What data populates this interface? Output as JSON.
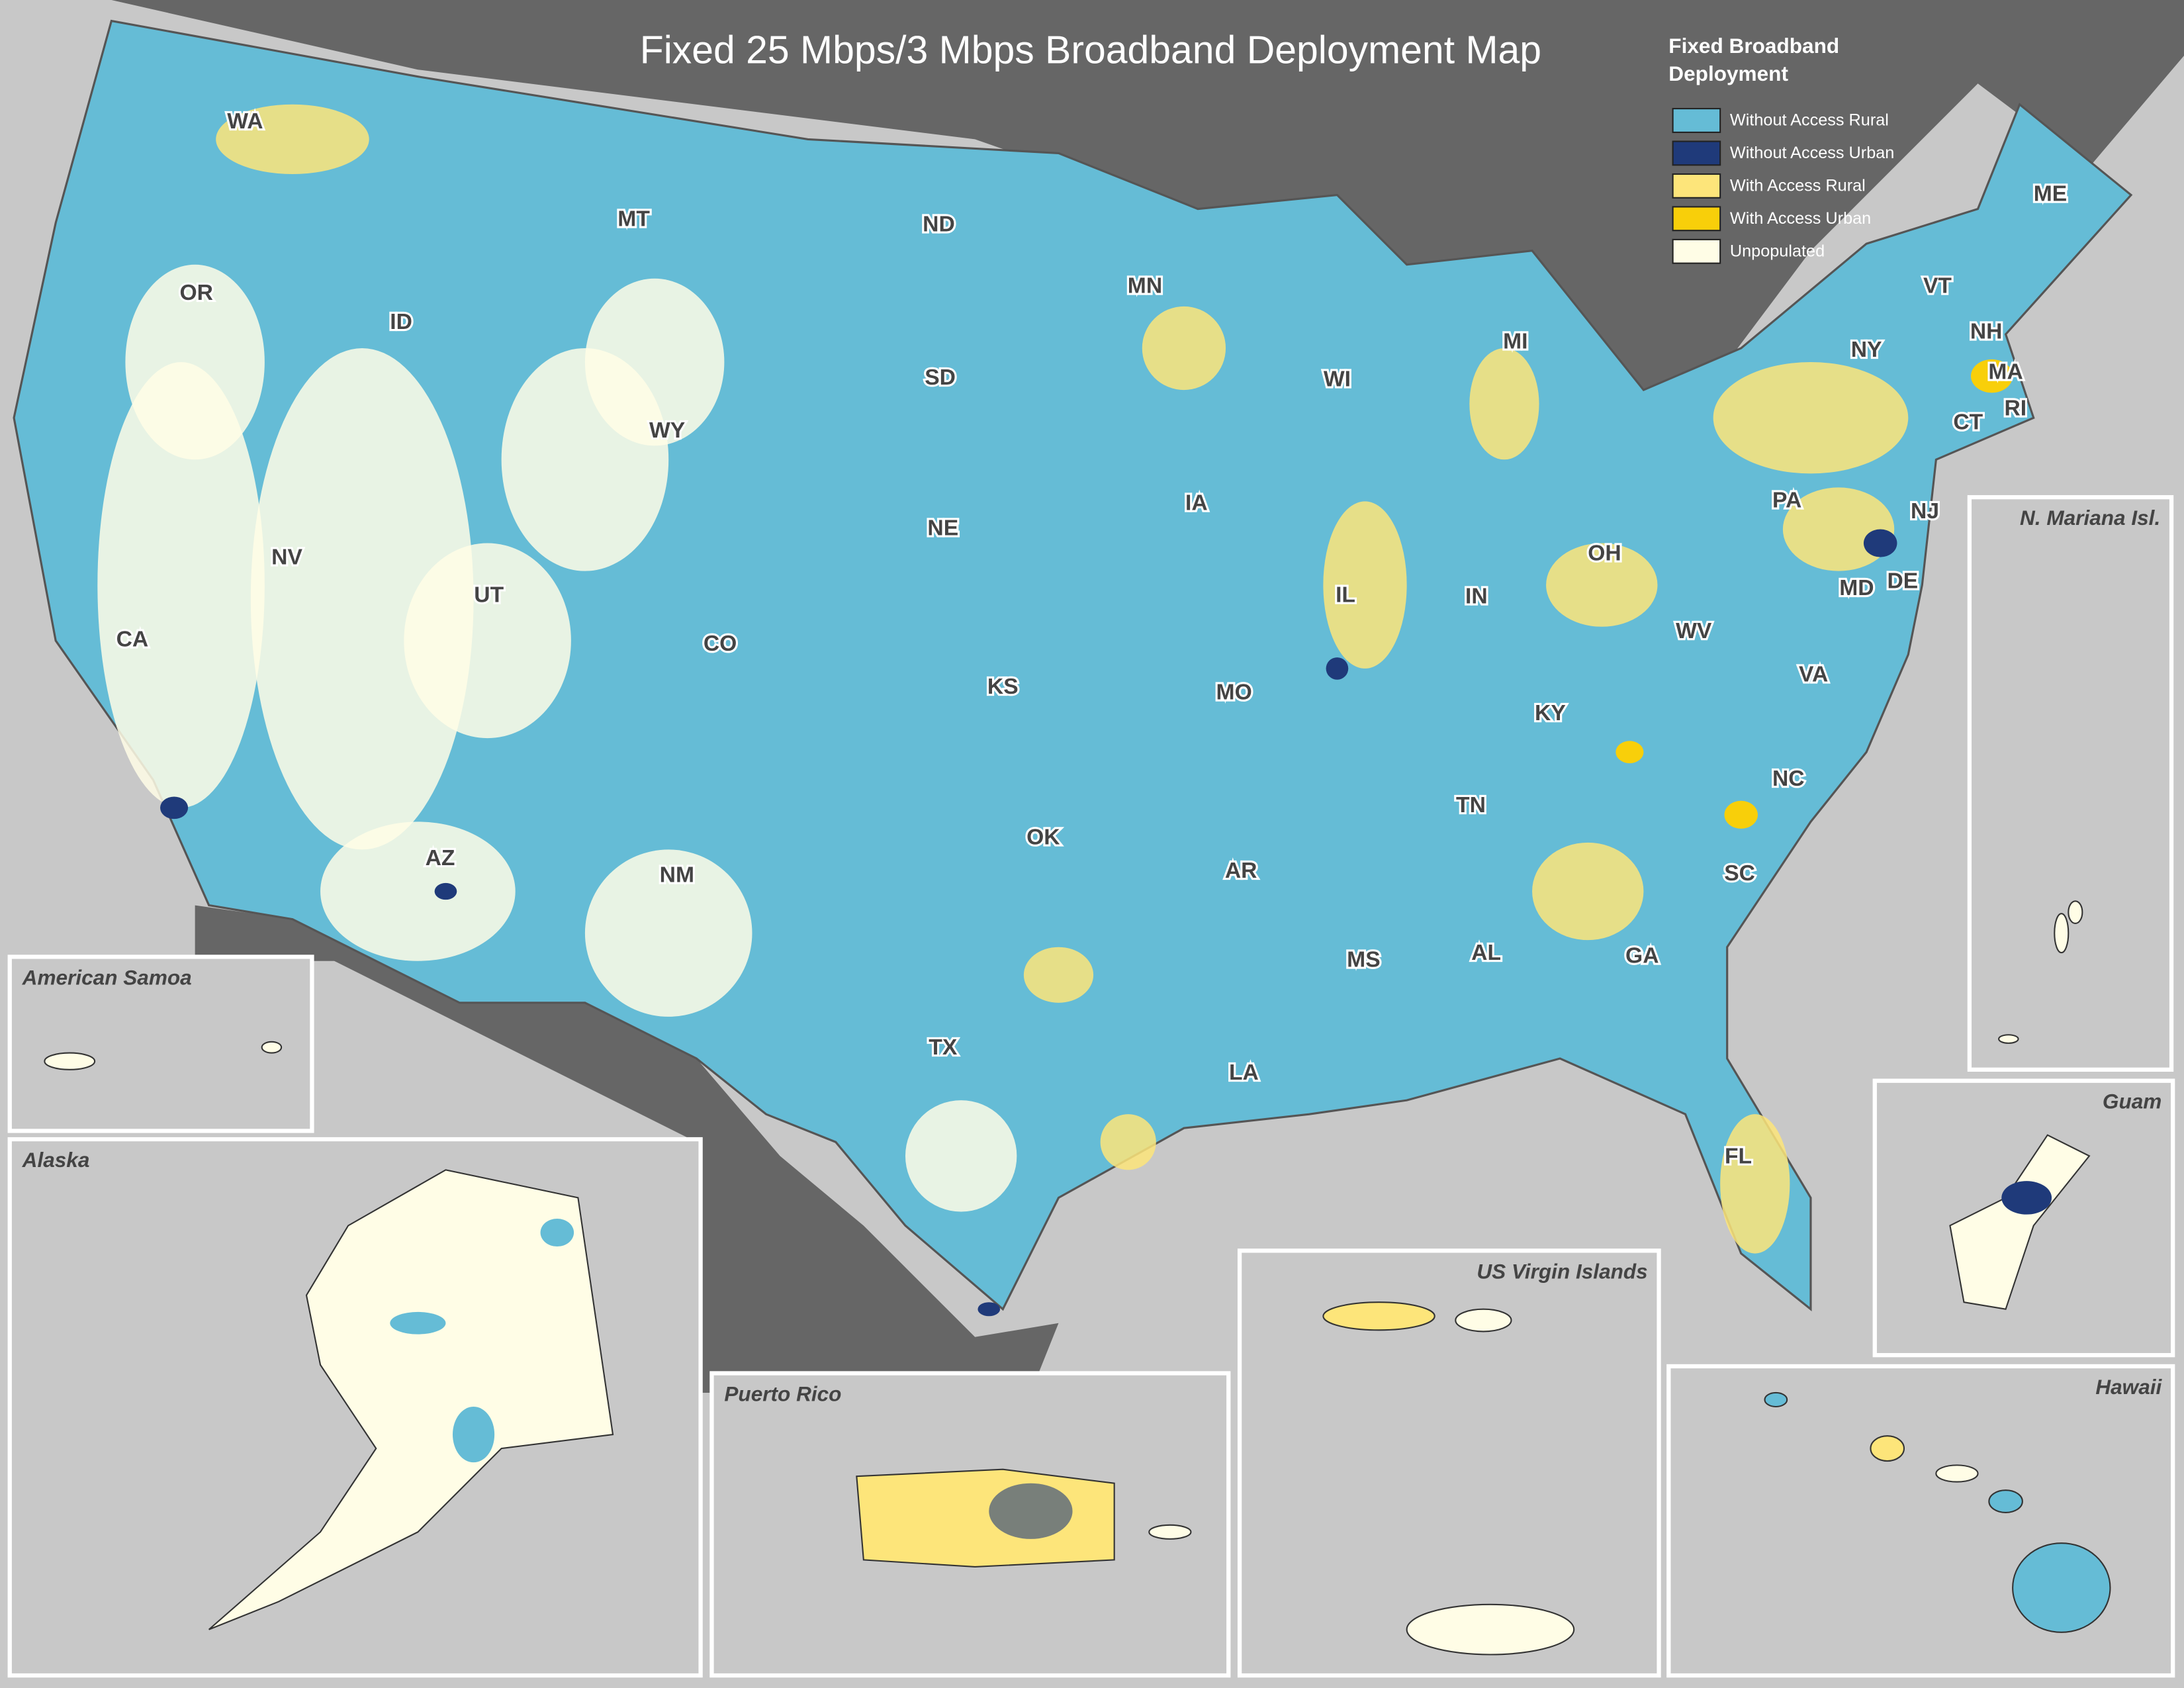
{
  "title": "Fixed 25 Mbps/3 Mbps Broadband Deployment Map",
  "legend": {
    "title": "Fixed Broadband Deployment",
    "items": [
      {
        "label": "Without Access Rural",
        "color": "#65bcd6"
      },
      {
        "label": "Without Access Urban",
        "color": "#1f3a7a"
      },
      {
        "label": "With Access Rural",
        "color": "#fde57a"
      },
      {
        "label": "With Access Urban",
        "color": "#f8cf0a"
      },
      {
        "label": "Unpopulated",
        "color": "#fffde6"
      }
    ]
  },
  "state_labels": [
    "WA",
    "OR",
    "CA",
    "ID",
    "NV",
    "MT",
    "WY",
    "UT",
    "AZ",
    "CO",
    "NM",
    "ND",
    "SD",
    "NE",
    "KS",
    "OK",
    "TX",
    "MN",
    "IA",
    "MO",
    "AR",
    "LA",
    "WI",
    "IL",
    "MS",
    "MI",
    "IN",
    "KY",
    "TN",
    "AL",
    "GA",
    "FL",
    "OH",
    "WV",
    "VA",
    "NC",
    "SC",
    "PA",
    "NY",
    "VT",
    "NH",
    "ME",
    "MA",
    "CT",
    "RI",
    "NJ",
    "DE",
    "MD"
  ],
  "insets": [
    {
      "title": "American Samoa"
    },
    {
      "title": "Alaska"
    },
    {
      "title": "Puerto Rico"
    },
    {
      "title": "US Virgin Islands"
    },
    {
      "title": "Hawaii"
    },
    {
      "title": "Guam"
    },
    {
      "title": "N. Mariana Isl."
    }
  ]
}
